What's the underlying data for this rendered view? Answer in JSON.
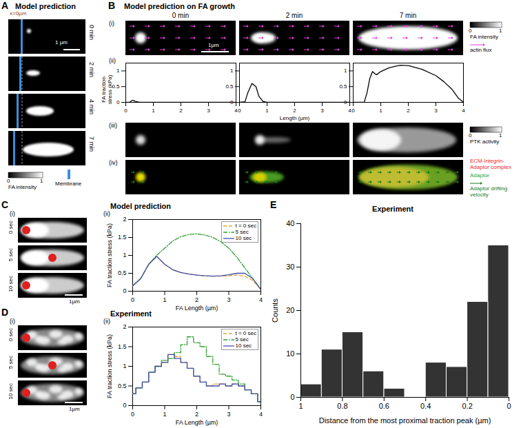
{
  "chart_data": [
    {
      "type": "line",
      "y_label": "FA traction stress (kPa)",
      "color": "#000000",
      "x": [
        0,
        0.15,
        0.25,
        0.35,
        0.5,
        4
      ],
      "values": [
        0,
        0.01,
        0.07,
        0.03,
        0,
        0
      ],
      "xlim": [
        0,
        4
      ],
      "xticks": [
        0,
        1,
        2,
        3,
        4
      ],
      "ylim": [
        0,
        1.25
      ],
      "yticks": [
        0,
        0.5,
        1
      ]
    },
    {
      "type": "line",
      "x_label": "Length (µm)",
      "color": "#000000",
      "x": [
        0,
        0.2,
        0.3,
        0.45,
        0.6,
        0.7,
        0.85,
        1,
        4
      ],
      "values": [
        0,
        0.02,
        0.3,
        0.6,
        0.5,
        0.2,
        0.03,
        0,
        0
      ],
      "xlim": [
        0,
        4
      ],
      "xticks": [
        0,
        1,
        2,
        3,
        4
      ],
      "ylim": [
        0,
        1.25
      ],
      "yticks": [
        0,
        0.5,
        1
      ]
    },
    {
      "type": "line",
      "color": "#000000",
      "x": [
        0,
        0.4,
        0.5,
        0.6,
        0.7,
        0.8,
        0.85,
        1,
        1.3,
        1.7,
        2,
        2.5,
        3,
        3.3,
        3.6,
        3.8,
        4
      ],
      "values": [
        0,
        0,
        0.3,
        0.75,
        0.98,
        0.9,
        0.88,
        0.98,
        1.1,
        1.18,
        1.17,
        1.05,
        0.85,
        0.65,
        0.4,
        0.15,
        0
      ],
      "xlim": [
        0,
        4
      ],
      "xticks": [
        0,
        1,
        2,
        3,
        4
      ],
      "ylim": [
        0,
        1.25
      ],
      "yticks": [
        0,
        0.5,
        1
      ]
    },
    {
      "type": "line",
      "x_label": "FA Length (µm)",
      "y_label": "FA traction stress (kPa)",
      "legend": "top-right",
      "x": [
        0,
        0.25,
        0.5,
        0.75,
        1,
        1.25,
        1.5,
        1.75,
        2,
        2.25,
        2.5,
        2.75,
        3,
        3.25,
        3.5,
        3.75,
        4
      ],
      "series": [
        {
          "name": "t = 0 sec",
          "color": "#e8a33d",
          "line_style": "dashed",
          "values": [
            0.15,
            0.35,
            0.75,
            0.97,
            0.75,
            0.6,
            0.52,
            0.48,
            0.45,
            0.43,
            0.42,
            0.42,
            0.43,
            0.45,
            0.42,
            0.3,
            0.05
          ]
        },
        {
          "name": "5 sec",
          "color": "#2ca02c",
          "line_style": "dashdot",
          "values": [
            0.15,
            0.35,
            0.75,
            1.0,
            1.2,
            1.4,
            1.52,
            1.58,
            1.6,
            1.57,
            1.5,
            1.38,
            1.2,
            0.95,
            0.65,
            0.35,
            0.05
          ]
        },
        {
          "name": "10 sec",
          "color": "#3d4ea8",
          "line_style": "solid",
          "values": [
            0.15,
            0.35,
            0.75,
            0.97,
            0.75,
            0.6,
            0.52,
            0.48,
            0.45,
            0.43,
            0.42,
            0.43,
            0.46,
            0.5,
            0.5,
            0.35,
            0.05
          ]
        }
      ],
      "xlim": [
        0,
        4
      ],
      "xticks": [
        0,
        1,
        2,
        3,
        4
      ],
      "ylim": [
        0,
        2
      ],
      "yticks": [
        0,
        0.5,
        1,
        1.5,
        2
      ]
    },
    {
      "type": "line",
      "x_label": "FA Length (µm)",
      "y_label": "FA traction stress (kPa)",
      "legend": "top-right",
      "x": [
        0,
        0.2,
        0.4,
        0.6,
        0.8,
        1,
        1.2,
        1.4,
        1.6,
        1.8,
        2,
        2.2,
        2.4,
        2.6,
        2.8,
        3,
        3.2,
        3.4,
        3.6,
        3.8,
        4
      ],
      "series": [
        {
          "name": "t = 0 sec",
          "color": "#e8a33d",
          "line_style": "dashed",
          "values": [
            0.3,
            0.45,
            0.6,
            0.85,
            1.0,
            1.1,
            1.3,
            1.25,
            1.1,
            0.95,
            0.75,
            0.6,
            0.5,
            0.55,
            0.55,
            0.5,
            0.55,
            0.5,
            0.4,
            0.3,
            0.1
          ]
        },
        {
          "name": "5 sec",
          "color": "#2ca02c",
          "line_style": "dashdot",
          "values": [
            0.3,
            0.45,
            0.6,
            0.85,
            1.0,
            1.15,
            1.2,
            1.35,
            1.55,
            1.75,
            1.6,
            1.5,
            1.25,
            1.05,
            0.8,
            0.75,
            0.65,
            0.55,
            0.4,
            0.3,
            0.1
          ]
        },
        {
          "name": "10 sec",
          "color": "#3d4ea8",
          "line_style": "solid",
          "values": [
            0.3,
            0.45,
            0.6,
            0.85,
            1.0,
            1.1,
            1.3,
            1.2,
            1.1,
            0.95,
            0.75,
            0.6,
            0.5,
            0.5,
            0.55,
            0.5,
            0.55,
            0.5,
            0.4,
            0.3,
            0.1
          ]
        }
      ],
      "xlim": [
        0,
        4
      ],
      "xticks": [
        0,
        1,
        2,
        3,
        4
      ],
      "ylim": [
        0,
        2
      ],
      "yticks": [
        0,
        0.5,
        1,
        1.5,
        2
      ]
    },
    {
      "type": "histogram",
      "x_label": "Distance from the most proximal traction peak (µm)",
      "y_label": "Counts",
      "bins": [
        0,
        0.1,
        0.2,
        0.3,
        0.4,
        0.5,
        0.6,
        0.7,
        0.8,
        0.9,
        1
      ],
      "values": [
        35,
        22,
        7,
        8,
        0,
        2,
        6,
        15,
        11,
        3
      ],
      "color": "#333333",
      "xlim": [
        1,
        0
      ],
      "xticks": [
        1,
        0.8,
        0.6,
        0.4,
        0.2,
        0
      ],
      "ylim": [
        0,
        40
      ],
      "yticks": [
        0,
        10,
        20,
        30,
        40
      ]
    }
  ],
  "figure": {
    "A": {
      "label": "A",
      "title": "Model prediction",
      "x0_label": "x=0µm",
      "times": [
        "0 min",
        "2 min",
        "4 min",
        "7 min"
      ],
      "scale_bar": "1 µm",
      "colorbar": {
        "label": "FA intensity",
        "ticks": [
          0,
          1
        ]
      },
      "membrane": "Membrane"
    },
    "B": {
      "label": "B",
      "title": "Model prediction on FA growth",
      "times": [
        "0 min",
        "2 min",
        "7 min"
      ],
      "rows": [
        "(i)",
        "(ii)",
        "(iii)",
        "(iv)"
      ],
      "scale_bar": "1µm",
      "fa_colorbar": {
        "label": "FA intensity",
        "ticks": [
          0,
          1
        ]
      },
      "actin_flux": "actin flux",
      "ptk_colorbar": {
        "label": "PTK activity",
        "ticks": [
          0,
          1
        ]
      },
      "legend_iv": [
        {
          "label": "ECM-Integrin-Adaptor complex",
          "color": "#e8262a"
        },
        {
          "label": "Adaptor",
          "color": "#2ca02c"
        },
        {
          "label": "Adaptor drifting velocity",
          "color": "#1a7a1a"
        }
      ]
    },
    "C": {
      "label": "C",
      "title": "Model prediction",
      "rows": [
        "(i)",
        "(ii)"
      ],
      "times": [
        "0 sec",
        "5 sec",
        "10 sec"
      ],
      "scale_bar": "1µm"
    },
    "D": {
      "label": "D",
      "title": "Experiment",
      "rows": [
        "(i)",
        "(ii)"
      ],
      "times": [
        "0 sec",
        "5 sec",
        "10 sec"
      ],
      "scale_bar": "1µm"
    },
    "E": {
      "label": "E",
      "title": "Experiment"
    }
  }
}
